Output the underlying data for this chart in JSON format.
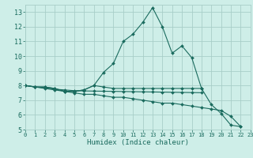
{
  "xlabel": "Humidex (Indice chaleur)",
  "bg_color": "#ceeee8",
  "grid_color": "#a8cec8",
  "line_color": "#1a6b5e",
  "series": [
    {
      "x": [
        0,
        1,
        2,
        3,
        4,
        5,
        6,
        7,
        8,
        9,
        10,
        11,
        12,
        13,
        14,
        15,
        16,
        17,
        18,
        19,
        20,
        21,
        22
      ],
      "y": [
        8.0,
        7.9,
        7.9,
        7.8,
        7.6,
        7.6,
        7.7,
        8.0,
        8.9,
        9.5,
        11.0,
        11.5,
        12.3,
        13.3,
        12.0,
        10.2,
        10.7,
        9.9,
        7.8,
        6.7,
        6.1,
        5.3,
        5.2
      ]
    },
    {
      "x": [
        0,
        1,
        2,
        3,
        4,
        5,
        6,
        7,
        8,
        9,
        10,
        11,
        12,
        13,
        14,
        15,
        16,
        17,
        18
      ],
      "y": [
        8.0,
        7.9,
        7.9,
        7.8,
        7.6,
        7.6,
        7.7,
        8.0,
        7.9,
        7.8,
        7.8,
        7.8,
        7.8,
        7.8,
        7.8,
        7.8,
        7.8,
        7.8,
        7.8
      ]
    },
    {
      "x": [
        0,
        1,
        2,
        3,
        4,
        5,
        6,
        7,
        8,
        9,
        10,
        11,
        12,
        13,
        14,
        15,
        16,
        17,
        18,
        19,
        20,
        21,
        22
      ],
      "y": [
        8.0,
        7.9,
        7.8,
        7.7,
        7.6,
        7.5,
        7.4,
        7.4,
        7.3,
        7.2,
        7.2,
        7.1,
        7.0,
        6.9,
        6.8,
        6.8,
        6.7,
        6.6,
        6.5,
        6.4,
        6.3,
        5.9,
        5.2
      ]
    },
    {
      "x": [
        0,
        1,
        2,
        3,
        4,
        5,
        6,
        7,
        8,
        9,
        10,
        11,
        12,
        13,
        14,
        15,
        16,
        17,
        18
      ],
      "y": [
        8.0,
        7.9,
        7.85,
        7.75,
        7.7,
        7.65,
        7.63,
        7.62,
        7.61,
        7.6,
        7.59,
        7.58,
        7.57,
        7.56,
        7.55,
        7.54,
        7.53,
        7.52,
        7.51
      ]
    }
  ],
  "xlim": [
    0,
    23
  ],
  "ylim": [
    5,
    13.5
  ],
  "yticks": [
    5,
    6,
    7,
    8,
    9,
    10,
    11,
    12,
    13
  ],
  "xticks": [
    0,
    1,
    2,
    3,
    4,
    5,
    6,
    7,
    8,
    9,
    10,
    11,
    12,
    13,
    14,
    15,
    16,
    17,
    18,
    19,
    20,
    21,
    22,
    23
  ]
}
